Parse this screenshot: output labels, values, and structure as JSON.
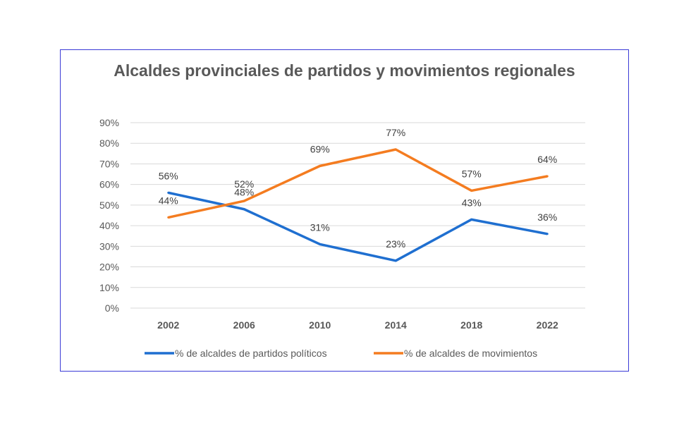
{
  "chart_data": {
    "type": "line",
    "title": "Alcaldes provinciales de partidos y movimientos regionales",
    "categories": [
      "2002",
      "2006",
      "2010",
      "2014",
      "2018",
      "2022"
    ],
    "series": [
      {
        "name": "% de alcaldes de partidos políticos",
        "values": [
          56,
          48,
          31,
          23,
          43,
          36
        ],
        "color": "#1f6fd0"
      },
      {
        "name": "% de alcaldes de movimientos",
        "values": [
          44,
          52,
          69,
          77,
          57,
          64
        ],
        "color": "#f47c20"
      }
    ],
    "ylim": [
      0,
      90
    ],
    "yticks": [
      "0%",
      "10%",
      "20%",
      "30%",
      "40%",
      "50%",
      "60%",
      "70%",
      "80%",
      "90%"
    ],
    "grid": true,
    "legend": "bottom",
    "xlabel": "",
    "ylabel": ""
  }
}
